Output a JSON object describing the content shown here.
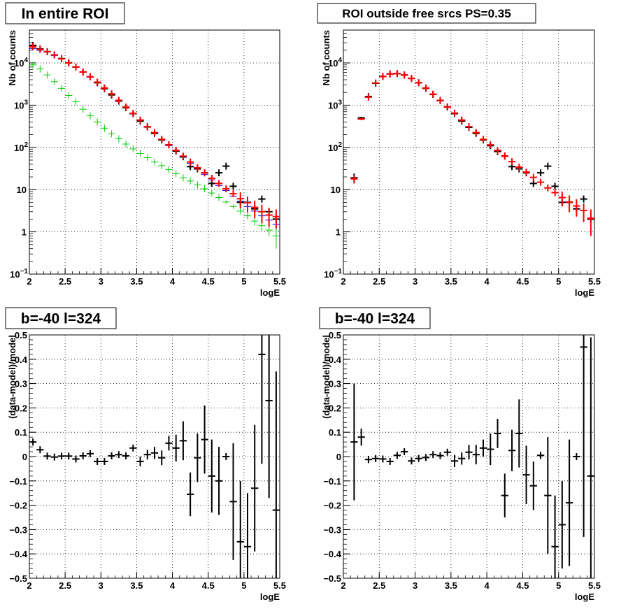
{
  "colors": {
    "data": "#000000",
    "model": "#ff0000",
    "model_alt": "#0000ff",
    "component": "#00cc00",
    "grid": "#000000"
  },
  "chart_data": [
    {
      "type": "scatter",
      "title": "In entire ROI",
      "xlabel": "logE",
      "ylabel": "Nb of counts",
      "xlim": [
        2,
        5.5
      ],
      "ylim": [
        0.1,
        60000
      ],
      "yscale": "log",
      "grid": true,
      "x_ticks": [
        "2",
        "2.5",
        "3",
        "3.5",
        "4",
        "4.5",
        "5",
        "5.5"
      ],
      "y_ticks": [
        {
          "base": "10",
          "exp": "−1"
        },
        {
          "base": "1",
          "exp": ""
        },
        {
          "base": "10",
          "exp": ""
        },
        {
          "base": "10",
          "exp": "2"
        },
        {
          "base": "10",
          "exp": "3"
        },
        {
          "base": "10",
          "exp": "4"
        }
      ],
      "series": [
        {
          "color_key": "model_alt",
          "style": "hbar",
          "x": [
            2.05,
            2.15,
            2.25,
            2.35,
            2.45,
            2.55,
            2.65,
            2.75,
            2.85,
            2.95,
            3.05,
            3.15,
            3.25,
            3.35,
            3.45,
            3.55,
            3.65,
            3.75,
            3.85,
            3.95,
            4.05,
            4.15,
            4.25,
            4.35,
            4.45,
            4.55,
            4.65,
            4.75,
            4.85,
            4.95,
            5.05,
            5.15,
            5.25,
            5.35,
            5.45
          ],
          "y": [
            22000,
            20000,
            18000,
            15000,
            12500,
            10000,
            8000,
            6000,
            4600,
            3400,
            2500,
            1800,
            1250,
            880,
            620,
            430,
            300,
            215,
            150,
            110,
            80,
            58,
            42,
            31,
            23,
            17,
            12.5,
            9.5,
            7,
            5.3,
            4,
            3.1,
            2.4,
            1.9,
            1.5
          ],
          "yerr": [
            0,
            0,
            0,
            0,
            0,
            0,
            0,
            0,
            0,
            0,
            0,
            0,
            0,
            0,
            0,
            0,
            0,
            0,
            0,
            0,
            0,
            0,
            0,
            0,
            0,
            0,
            0,
            0,
            0,
            0,
            0,
            0,
            0,
            0,
            0.45
          ]
        },
        {
          "color_key": "component",
          "style": "cross",
          "x": [
            2.05,
            2.15,
            2.25,
            2.35,
            2.45,
            2.55,
            2.65,
            2.75,
            2.85,
            2.95,
            3.05,
            3.15,
            3.25,
            3.35,
            3.45,
            3.55,
            3.65,
            3.75,
            3.85,
            3.95,
            4.05,
            4.15,
            4.25,
            4.35,
            4.45,
            4.55,
            4.65,
            4.75,
            4.85,
            4.95,
            5.05,
            5.15,
            5.25,
            5.35,
            5.45
          ],
          "y": [
            9000,
            7200,
            5200,
            3600,
            2500,
            1700,
            1200,
            800,
            560,
            400,
            285,
            210,
            160,
            120,
            92,
            72,
            57,
            45,
            37,
            30,
            24,
            19,
            16,
            13,
            10.5,
            8.3,
            6.5,
            5.1,
            4,
            3.1,
            2.4,
            1.8,
            1.4,
            1.1,
            0.8
          ],
          "yerr": [
            0,
            0,
            0,
            0,
            0,
            0,
            0,
            0,
            0,
            0,
            0,
            0,
            0,
            0,
            0,
            0,
            0,
            0,
            0,
            0,
            0,
            0,
            0,
            0,
            0,
            0,
            0,
            0.5,
            0.5,
            0.5,
            0.45,
            0.4,
            0.35,
            0.3,
            0.4
          ]
        },
        {
          "color_key": "data",
          "style": "cross",
          "x": [
            2.05,
            2.15,
            2.25,
            2.35,
            2.45,
            2.55,
            2.65,
            2.75,
            2.85,
            2.95,
            3.05,
            3.15,
            3.25,
            3.35,
            3.45,
            3.55,
            3.65,
            3.75,
            3.85,
            3.95,
            4.05,
            4.15,
            4.25,
            4.35,
            4.45,
            4.55,
            4.65,
            4.75,
            4.85,
            4.95,
            5.05,
            5.15,
            5.25,
            5.35,
            5.45
          ],
          "y": [
            26000,
            21500,
            18500,
            15500,
            12700,
            10100,
            8000,
            6100,
            4700,
            3400,
            2450,
            1750,
            1250,
            870,
            630,
            420,
            305,
            215,
            150,
            116,
            82,
            60,
            35,
            31,
            25,
            14,
            25,
            36,
            12,
            5,
            5,
            3.5,
            6,
            3,
            2
          ],
          "yerr": [
            0,
            0,
            0,
            0,
            0,
            0,
            0,
            0,
            0,
            0,
            0,
            0,
            0,
            0,
            0,
            0,
            0,
            0,
            0,
            0,
            0,
            0,
            0,
            0,
            0,
            0,
            0,
            0,
            0,
            0,
            0,
            0,
            0,
            0,
            0
          ]
        },
        {
          "color_key": "model",
          "style": "cross",
          "x": [
            2.05,
            2.15,
            2.25,
            2.35,
            2.45,
            2.55,
            2.65,
            2.75,
            2.85,
            2.95,
            3.05,
            3.15,
            3.25,
            3.35,
            3.45,
            3.55,
            3.65,
            3.75,
            3.85,
            3.95,
            4.05,
            4.15,
            4.25,
            4.35,
            4.45,
            4.55,
            4.65,
            4.75,
            4.85,
            4.95,
            5.05,
            5.15,
            5.25,
            5.35,
            5.45
          ],
          "y": [
            24000,
            21000,
            18500,
            15500,
            12500,
            10000,
            8000,
            6100,
            4700,
            3500,
            2550,
            1850,
            1300,
            900,
            640,
            445,
            310,
            225,
            155,
            115,
            85,
            62,
            45,
            33,
            25,
            18.5,
            14,
            10.5,
            8,
            6.1,
            4.9,
            3.8,
            3,
            2.5,
            2.3
          ],
          "yerr": [
            0,
            0,
            0,
            0,
            0,
            0,
            0,
            0,
            0,
            0,
            0,
            0,
            0,
            0,
            0,
            0,
            0,
            0,
            0,
            0,
            0,
            0,
            0,
            0,
            0,
            0,
            0,
            0,
            0,
            2.5,
            2,
            1.7,
            1.4,
            1.2,
            1.1
          ]
        }
      ]
    },
    {
      "type": "scatter",
      "title": "ROI outside free srcs PS=0.35",
      "xlabel": "logE",
      "ylabel": "Nb of counts",
      "xlim": [
        2,
        5.5
      ],
      "ylim": [
        0.1,
        60000
      ],
      "yscale": "log",
      "grid": true,
      "x_ticks": [
        "2",
        "2.5",
        "3",
        "3.5",
        "4",
        "4.5",
        "5",
        "5.5"
      ],
      "y_ticks": [
        {
          "base": "10",
          "exp": "−1"
        },
        {
          "base": "1",
          "exp": ""
        },
        {
          "base": "10",
          "exp": ""
        },
        {
          "base": "10",
          "exp": "2"
        },
        {
          "base": "10",
          "exp": "3"
        },
        {
          "base": "10",
          "exp": "4"
        }
      ],
      "series": [
        {
          "color_key": "data",
          "style": "cross",
          "x": [
            2.15,
            2.25,
            2.35,
            2.45,
            2.55,
            2.65,
            2.75,
            2.85,
            2.95,
            3.05,
            3.15,
            3.25,
            3.35,
            3.45,
            3.55,
            3.65,
            3.75,
            3.85,
            3.95,
            4.05,
            4.15,
            4.25,
            4.35,
            4.45,
            4.55,
            4.65,
            4.75,
            4.85,
            4.95,
            5.05,
            5.15,
            5.25,
            5.35,
            5.45
          ],
          "y": [
            19,
            500,
            1600,
            3300,
            4800,
            5500,
            5600,
            5200,
            4300,
            3400,
            2500,
            1800,
            1280,
            900,
            630,
            420,
            300,
            215,
            150,
            110,
            80,
            62,
            35,
            31,
            25,
            14,
            25,
            36,
            12,
            5,
            5,
            3.5,
            6,
            2
          ],
          "yerr": [
            5,
            30,
            0,
            0,
            0,
            0,
            0,
            0,
            0,
            0,
            0,
            0,
            0,
            0,
            0,
            0,
            0,
            0,
            0,
            0,
            0,
            0,
            0,
            0,
            0,
            0,
            0,
            0,
            0,
            0,
            0,
            0,
            0,
            0
          ]
        },
        {
          "color_key": "model",
          "style": "cross",
          "x": [
            2.15,
            2.25,
            2.35,
            2.45,
            2.55,
            2.65,
            2.75,
            2.85,
            2.95,
            3.05,
            3.15,
            3.25,
            3.35,
            3.45,
            3.55,
            3.65,
            3.75,
            3.85,
            3.95,
            4.05,
            4.15,
            4.25,
            4.35,
            4.45,
            4.55,
            4.65,
            4.75,
            4.85,
            4.95,
            5.05,
            5.15,
            5.25,
            5.35,
            5.45
          ],
          "y": [
            18,
            470,
            1550,
            3350,
            4750,
            5450,
            5550,
            5150,
            4300,
            3400,
            2550,
            1820,
            1300,
            910,
            650,
            445,
            310,
            225,
            155,
            115,
            85,
            63,
            46,
            34,
            26,
            19.5,
            15,
            11,
            8.5,
            6.5,
            5.1,
            4.1,
            3.2,
            2.1
          ],
          "yerr": [
            4,
            30,
            0,
            0,
            0,
            0,
            0,
            0,
            0,
            0,
            0,
            0,
            0,
            0,
            0,
            0,
            0,
            0,
            0,
            0,
            0,
            0,
            0,
            0,
            0,
            0,
            0,
            0,
            0,
            2.5,
            2.2,
            1.8,
            1.5,
            1.3
          ]
        }
      ]
    },
    {
      "type": "scatter",
      "title": "b=-40 l=324",
      "xlabel": "logE",
      "ylabel": "(data-model)/model",
      "xlim": [
        2,
        5.5
      ],
      "ylim": [
        -0.5,
        0.5
      ],
      "grid": true,
      "x_ticks": [
        "2",
        "2.5",
        "3",
        "3.5",
        "4",
        "4.5",
        "5",
        "5.5"
      ],
      "y_ticks": [
        "−0.5",
        "−0.4",
        "−0.3",
        "−0.2",
        "−0.1",
        "0",
        "0.1",
        "0.2",
        "0.3",
        "0.4",
        "0.5"
      ],
      "series": [
        {
          "color_key": "data",
          "style": "cross",
          "x": [
            2.05,
            2.15,
            2.25,
            2.35,
            2.45,
            2.55,
            2.65,
            2.75,
            2.85,
            2.95,
            3.05,
            3.15,
            3.25,
            3.35,
            3.45,
            3.55,
            3.65,
            3.75,
            3.85,
            3.95,
            4.05,
            4.15,
            4.25,
            4.35,
            4.45,
            4.55,
            4.65,
            4.75,
            4.85,
            4.95,
            5.05,
            5.15,
            5.25,
            5.35,
            5.45
          ],
          "y": [
            0.06,
            0.028,
            0.002,
            -0.002,
            0.002,
            0.002,
            -0.01,
            0.003,
            0.012,
            -0.02,
            -0.02,
            0.003,
            0.008,
            0.003,
            0.035,
            -0.02,
            0.008,
            0.015,
            -0.005,
            0.055,
            0.035,
            0.065,
            -0.155,
            -0.005,
            0.07,
            -0.08,
            -0.1,
            0,
            -0.185,
            -0.35,
            -0.37,
            -0.13,
            0.42,
            0.23,
            -0.22
          ],
          "yerr": [
            0,
            0,
            0,
            0,
            0,
            0,
            0,
            0,
            0,
            0,
            0,
            0,
            0,
            0,
            0,
            0.02,
            0.02,
            0.025,
            0.03,
            0.03,
            0.055,
            0.08,
            0.09,
            0.1,
            0.14,
            0.15,
            0.14,
            0,
            0.24,
            0.25,
            0.22,
            0.26,
            0.45,
            0.4,
            0.57
          ]
        }
      ]
    },
    {
      "type": "scatter",
      "title": "b=-40 l=324",
      "xlabel": "logE",
      "ylabel": "(data-model)/model",
      "xlim": [
        2,
        5.5
      ],
      "ylim": [
        -0.5,
        0.5
      ],
      "grid": true,
      "x_ticks": [
        "2",
        "2.5",
        "3",
        "3.5",
        "4",
        "4.5",
        "5",
        "5.5"
      ],
      "y_ticks": [
        "−0.5",
        "−0.4",
        "−0.3",
        "−0.2",
        "−0.1",
        "0",
        "0.1",
        "0.2",
        "0.3",
        "0.4",
        "0.5"
      ],
      "series": [
        {
          "color_key": "data",
          "style": "cross",
          "x": [
            2.15,
            2.25,
            2.35,
            2.45,
            2.55,
            2.65,
            2.75,
            2.85,
            2.95,
            3.05,
            3.15,
            3.25,
            3.35,
            3.45,
            3.55,
            3.65,
            3.75,
            3.85,
            3.95,
            4.05,
            4.15,
            4.25,
            4.35,
            4.45,
            4.55,
            4.65,
            4.75,
            4.85,
            4.95,
            5.05,
            5.15,
            5.25,
            5.35,
            5.45
          ],
          "y": [
            0.06,
            0.08,
            -0.012,
            -0.008,
            -0.01,
            -0.02,
            0.005,
            0.02,
            -0.018,
            -0.008,
            -0.004,
            0.008,
            0.004,
            0.018,
            -0.018,
            -0.008,
            0.018,
            0.008,
            0.035,
            0.03,
            0.095,
            -0.16,
            0.025,
            0.095,
            -0.075,
            -0.12,
            0.005,
            -0.16,
            -0.37,
            -0.28,
            -0.19,
            0,
            0.45,
            -0.08
          ],
          "yerr": [
            0.24,
            0.035,
            0.015,
            0,
            0,
            0,
            0,
            0,
            0,
            0,
            0,
            0,
            0,
            0,
            0.025,
            0.025,
            0.03,
            0.04,
            0.035,
            0.065,
            0.06,
            0.09,
            0.085,
            0.14,
            0.12,
            0.1,
            0,
            0.24,
            0.21,
            0.18,
            0.26,
            0,
            0.78,
            0.57
          ]
        }
      ]
    }
  ]
}
